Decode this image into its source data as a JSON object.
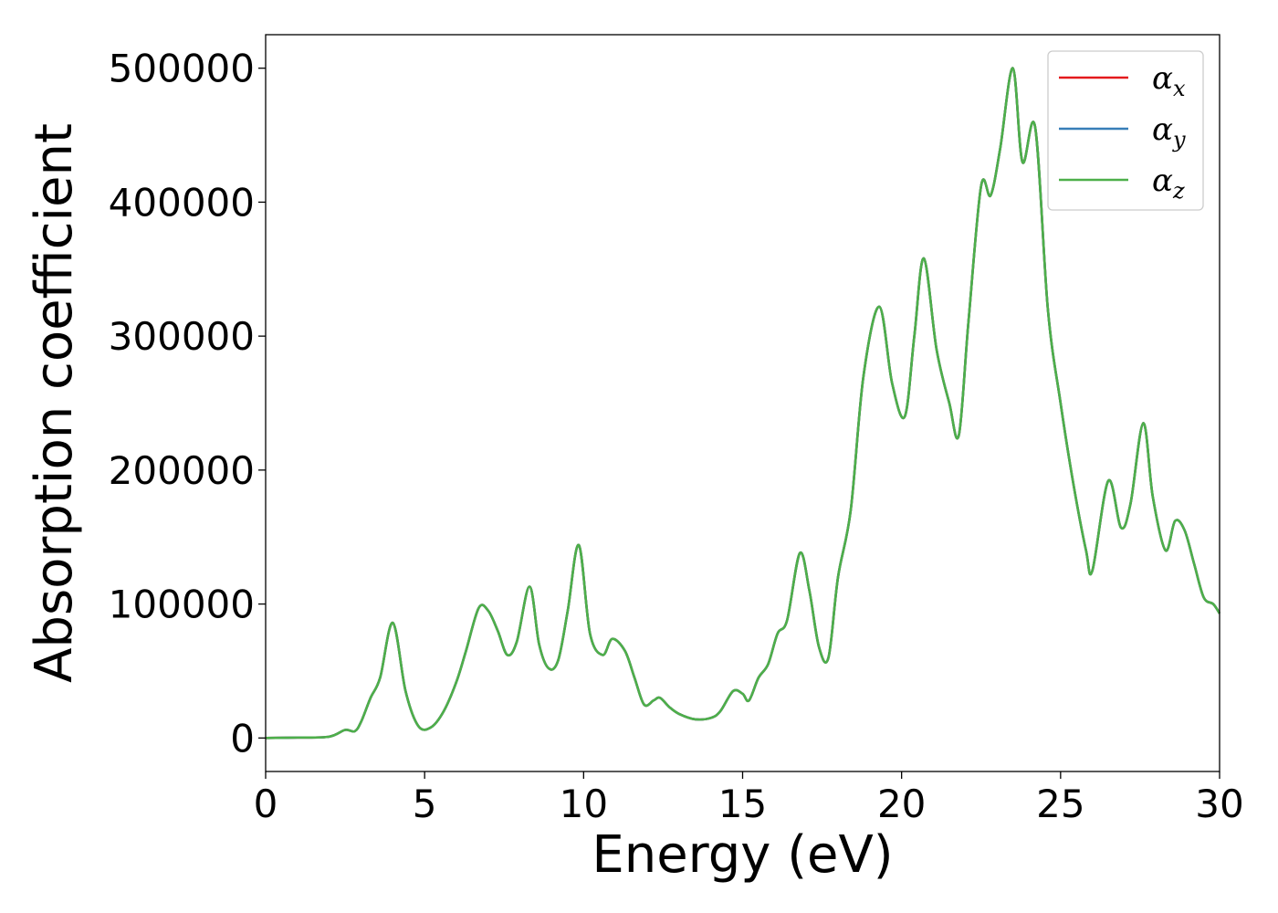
{
  "chart_data": {
    "type": "line",
    "xlabel": "Energy (eV)",
    "ylabel": "Absorption coefficient",
    "xlim": [
      0,
      30
    ],
    "ylim": [
      -25000,
      525000
    ],
    "xticks": [
      0,
      5,
      10,
      15,
      20,
      25,
      30
    ],
    "yticks": [
      0,
      100000,
      200000,
      300000,
      400000,
      500000
    ],
    "grid": false,
    "legend_position": "top-right",
    "legend": [
      {
        "symbol": "α",
        "sub": "x",
        "color": "#e41a1c"
      },
      {
        "symbol": "α",
        "sub": "y",
        "color": "#377eb8"
      },
      {
        "symbol": "α",
        "sub": "z",
        "color": "#4daf4a"
      }
    ],
    "x": [
      0,
      1,
      2,
      2.5,
      2.8,
      3.0,
      3.3,
      3.6,
      4.0,
      4.4,
      4.8,
      5.2,
      5.6,
      6.0,
      6.3,
      6.7,
      7.0,
      7.3,
      7.6,
      7.9,
      8.3,
      8.6,
      8.9,
      9.2,
      9.5,
      9.85,
      10.2,
      10.6,
      10.9,
      11.3,
      11.6,
      11.9,
      12.2,
      12.4,
      12.7,
      13.0,
      13.5,
      14.0,
      14.3,
      14.7,
      15.0,
      15.2,
      15.5,
      15.8,
      16.1,
      16.4,
      16.8,
      17.1,
      17.4,
      17.7,
      18.0,
      18.4,
      18.8,
      19.3,
      19.7,
      20.1,
      20.4,
      20.7,
      21.1,
      21.5,
      21.8,
      22.1,
      22.5,
      22.8,
      23.1,
      23.5,
      23.8,
      24.2,
      24.6,
      25.0,
      25.4,
      25.8,
      26.0,
      26.5,
      26.9,
      27.2,
      27.6,
      27.9,
      28.3,
      28.6,
      28.9,
      29.2,
      29.5,
      29.8,
      30.0
    ],
    "series": [
      {
        "name": "α_x",
        "values": [
          0,
          300,
          1000,
          6000,
          5000,
          12000,
          30000,
          45000,
          86000,
          35000,
          9000,
          8000,
          20000,
          42000,
          65000,
          97000,
          95000,
          80000,
          62000,
          72000,
          113000,
          70000,
          52000,
          58000,
          95000,
          144000,
          78000,
          62000,
          74000,
          65000,
          45000,
          25000,
          28000,
          30000,
          23000,
          18000,
          14000,
          15000,
          20000,
          35000,
          33000,
          28000,
          45000,
          55000,
          78000,
          88000,
          138000,
          110000,
          68000,
          60000,
          120000,
          170000,
          270000,
          322000,
          265000,
          240000,
          300000,
          358000,
          290000,
          250000,
          226000,
          310000,
          412000,
          405000,
          440000,
          500000,
          430000,
          456000,
          320000,
          250000,
          190000,
          140000,
          125000,
          192000,
          157000,
          175000,
          235000,
          180000,
          140000,
          162000,
          155000,
          130000,
          105000,
          100000,
          93000
        ]
      },
      {
        "name": "α_y",
        "values": [
          0,
          300,
          1000,
          6000,
          5000,
          12000,
          30000,
          45000,
          86000,
          35000,
          9000,
          8000,
          20000,
          42000,
          65000,
          97000,
          95000,
          80000,
          62000,
          72000,
          113000,
          70000,
          52000,
          58000,
          95000,
          144000,
          78000,
          62000,
          74000,
          65000,
          45000,
          25000,
          28000,
          30000,
          23000,
          18000,
          14000,
          15000,
          20000,
          35000,
          33000,
          28000,
          45000,
          55000,
          78000,
          88000,
          138000,
          110000,
          68000,
          60000,
          120000,
          170000,
          270000,
          322000,
          265000,
          240000,
          300000,
          358000,
          290000,
          250000,
          226000,
          310000,
          412000,
          405000,
          440000,
          500000,
          430000,
          456000,
          320000,
          250000,
          190000,
          140000,
          125000,
          192000,
          157000,
          175000,
          235000,
          180000,
          140000,
          162000,
          155000,
          130000,
          105000,
          100000,
          93000
        ]
      },
      {
        "name": "α_z",
        "values": [
          0,
          300,
          1000,
          6000,
          5000,
          12000,
          30000,
          45000,
          86000,
          35000,
          9000,
          8000,
          20000,
          42000,
          65000,
          97000,
          95000,
          80000,
          62000,
          72000,
          113000,
          70000,
          52000,
          58000,
          95000,
          144000,
          78000,
          62000,
          74000,
          65000,
          45000,
          25000,
          28000,
          30000,
          23000,
          18000,
          14000,
          15000,
          20000,
          35000,
          33000,
          28000,
          45000,
          55000,
          78000,
          88000,
          138000,
          110000,
          68000,
          60000,
          120000,
          170000,
          270000,
          322000,
          265000,
          240000,
          300000,
          358000,
          290000,
          250000,
          226000,
          310000,
          412000,
          405000,
          440000,
          500000,
          430000,
          456000,
          320000,
          250000,
          190000,
          140000,
          125000,
          192000,
          157000,
          175000,
          235000,
          180000,
          140000,
          162000,
          155000,
          130000,
          105000,
          100000,
          93000
        ]
      }
    ]
  }
}
